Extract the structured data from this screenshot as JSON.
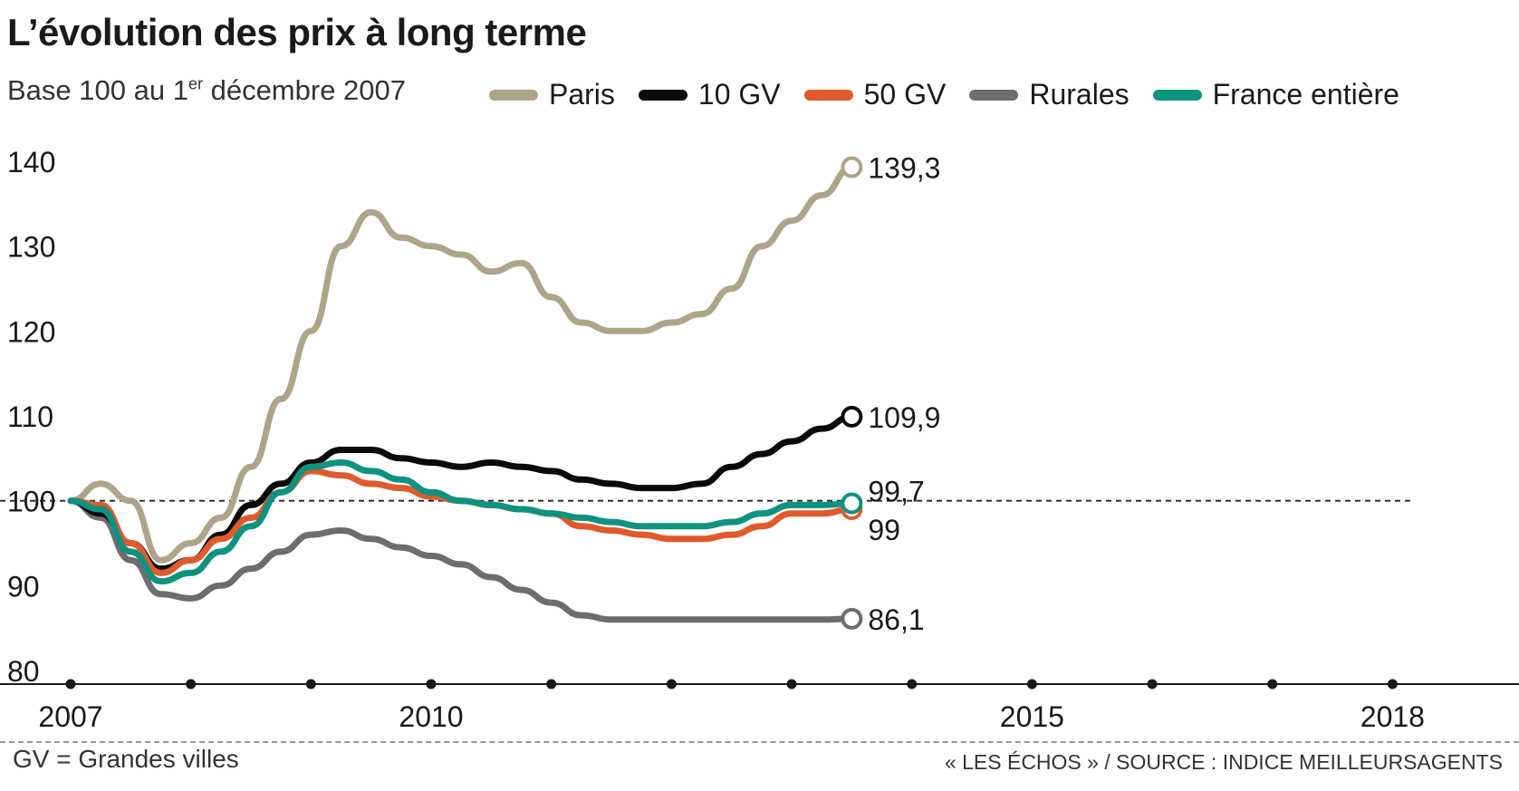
{
  "title": "L’évolution des prix à long terme",
  "subtitle_main": "Base 100 au 1",
  "subtitle_sup": "er",
  "subtitle_rest": " décembre 2007",
  "footer_note": "GV = Grandes villes",
  "source": "« LES ÉCHOS » / SOURCE : INDICE MEILLEURSAGENTS",
  "colors": {
    "paris": "#ada489",
    "gv10": "#0a0a0a",
    "gv50": "#e05a2b",
    "rurales": "#6d6d6d",
    "france": "#0e9380",
    "axis": "#1a1a1a"
  },
  "chart_data": {
    "type": "line",
    "x_start": 2007.92,
    "x_step": 0.25,
    "ylim": [
      80,
      140
    ],
    "yticks": [
      140,
      130,
      120,
      110,
      100,
      90,
      80
    ],
    "xticks": [
      "2007",
      "2010",
      "2015",
      "2018"
    ],
    "xtick_values": [
      2007.92,
      2010.92,
      2015.92,
      2018.92
    ],
    "reference_line": 100,
    "series": [
      {
        "name": "Paris",
        "color_key": "paris",
        "end_label": "139,3",
        "values": [
          100,
          102,
          100,
          93,
          95,
          98,
          104,
          112,
          120,
          130,
          134,
          131,
          130,
          129,
          127,
          128,
          124,
          121,
          120,
          120,
          121,
          122,
          125,
          130,
          133,
          136,
          139.3
        ]
      },
      {
        "name": "10 GV",
        "color_key": "gv10",
        "end_label": "109,9",
        "values": [
          100,
          98.5,
          95,
          92,
          93,
          96,
          99.5,
          102,
          104.5,
          106,
          106,
          105,
          104.5,
          104,
          104.5,
          104,
          103.5,
          102.5,
          102,
          101.5,
          101.5,
          102,
          104,
          105.5,
          107,
          108.5,
          109.9
        ]
      },
      {
        "name": "50 GV",
        "color_key": "gv50",
        "end_label": "99",
        "values": [
          100,
          99.5,
          95,
          91.5,
          93,
          95.5,
          98,
          101,
          103.5,
          103,
          102,
          101.5,
          100.5,
          100,
          99.5,
          99,
          98.5,
          97,
          96.5,
          96,
          95.5,
          95.5,
          96,
          97,
          98.5,
          98.5,
          99
        ]
      },
      {
        "name": "Rurales",
        "color_key": "rurales",
        "end_label": "86,1",
        "values": [
          100,
          98,
          93,
          89,
          88.5,
          90,
          92,
          94,
          96,
          96.5,
          95.5,
          94.5,
          93.5,
          92.5,
          91,
          89.5,
          88,
          86.5,
          86,
          86,
          86,
          86,
          86,
          86,
          86,
          86,
          86.1
        ]
      },
      {
        "name": "France entière",
        "color_key": "france",
        "end_label": "99,7",
        "values": [
          100,
          99,
          94,
          90.5,
          91.5,
          94,
          97,
          101,
          104,
          104.5,
          103.5,
          102.5,
          101,
          100,
          99.5,
          99,
          98.5,
          98,
          97.5,
          97,
          97,
          97,
          97.5,
          98.5,
          99.5,
          99.5,
          99.7
        ]
      }
    ]
  }
}
